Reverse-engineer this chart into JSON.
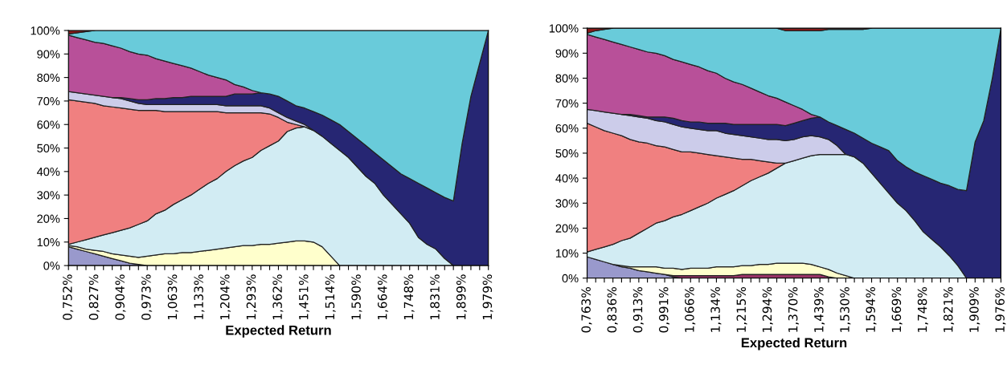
{
  "chart_data": [
    {
      "type": "area",
      "stacked": true,
      "xlabel": "Expected Return",
      "ylim": [
        0,
        100
      ],
      "yticks": [
        {
          "value": 0,
          "label": "0%"
        },
        {
          "value": 10,
          "label": "10%"
        },
        {
          "value": 20,
          "label": "20%"
        },
        {
          "value": 30,
          "label": "30%"
        },
        {
          "value": 40,
          "label": "40%"
        },
        {
          "value": 50,
          "label": "50%"
        },
        {
          "value": 60,
          "label": "60%"
        },
        {
          "value": 70,
          "label": "70%"
        },
        {
          "value": 80,
          "label": "80%"
        },
        {
          "value": 90,
          "label": "90%"
        },
        {
          "value": 100,
          "label": "100%"
        }
      ],
      "categories": [
        "0,752%",
        null,
        null,
        "0,827%",
        null,
        null,
        "0,904%",
        null,
        null,
        "0,973%",
        null,
        null,
        "1,063%",
        null,
        null,
        "1,133%",
        null,
        null,
        "1,204%",
        null,
        null,
        "1,293%",
        null,
        null,
        "1,362%",
        null,
        null,
        "1,451%",
        null,
        null,
        "1,514%",
        null,
        null,
        "1,590%",
        null,
        null,
        "1,664%",
        null,
        null,
        "1,748%",
        null,
        null,
        "1,831%",
        null,
        null,
        "1,899%",
        null,
        null,
        "1,979%"
      ],
      "series": [
        {
          "color": "#9999cc",
          "values": [
            8,
            7,
            6,
            5,
            4,
            3,
            2,
            1,
            0.5,
            0,
            null,
            null,
            null,
            null,
            null,
            null,
            null,
            null,
            null,
            null,
            null,
            null,
            null,
            null,
            null,
            null,
            null,
            null,
            null,
            null,
            null,
            null,
            null,
            null,
            null,
            null,
            null,
            null,
            null,
            null,
            null,
            null,
            null,
            null,
            null,
            null,
            null,
            null,
            null
          ]
        },
        {
          "color": "#ffffcc",
          "values": [
            0.5,
            1,
            1,
            1.5,
            2,
            2,
            2.5,
            3,
            3,
            4,
            4.5,
            5,
            5,
            5.5,
            5.5,
            6,
            6.5,
            7,
            7.5,
            8,
            8.5,
            8.5,
            9,
            9,
            9.5,
            10,
            10.5,
            10.5,
            10,
            8,
            4,
            0,
            null,
            null,
            null,
            null,
            null,
            null,
            null,
            null,
            null,
            null,
            null,
            null,
            null,
            null,
            null,
            null,
            null
          ]
        },
        {
          "color": "#d2ecf3",
          "values": [
            0.5,
            2,
            4,
            5.5,
            7,
            9,
            10.5,
            12,
            14,
            15,
            17.5,
            18.5,
            21,
            22.5,
            24.5,
            26.5,
            28.5,
            30,
            32.5,
            34.5,
            36,
            37.5,
            40,
            42,
            43.5,
            47,
            48,
            48.5,
            47.5,
            47,
            48,
            49,
            46,
            42,
            38,
            35,
            30,
            26,
            22,
            18,
            12,
            9,
            7,
            3,
            0,
            null,
            null,
            null,
            null
          ]
        },
        {
          "color": "#f08080",
          "values": [
            61.5,
            60,
            58.5,
            57,
            55,
            53.5,
            52,
            50.5,
            48.5,
            47,
            44,
            42,
            39.5,
            37.5,
            35.5,
            33,
            30.5,
            28.5,
            25,
            22.5,
            20.5,
            19,
            16,
            13.5,
            10,
            4,
            1.5,
            0,
            null,
            null,
            null,
            null,
            null,
            null,
            null,
            null,
            null,
            null,
            null,
            null,
            null,
            null,
            null,
            null,
            null,
            null,
            null,
            null,
            null
          ]
        },
        {
          "color": "#ccccea",
          "values": [
            3.5,
            3.5,
            3.5,
            3.5,
            4,
            4,
            4,
            3.5,
            3,
            2.5,
            2.5,
            3,
            3,
            3,
            3,
            3,
            3,
            3,
            3,
            3,
            3,
            3,
            3,
            2.5,
            2,
            2,
            1.5,
            1,
            0,
            null,
            null,
            null,
            null,
            null,
            null,
            null,
            null,
            null,
            null,
            null,
            null,
            null,
            null,
            null,
            null,
            null,
            null,
            null,
            null
          ]
        },
        {
          "color": "#262673",
          "values": [
            null,
            null,
            null,
            null,
            null,
            0,
            0.5,
            1,
            1.5,
            2,
            2.5,
            2.5,
            3,
            3,
            3.5,
            3.5,
            3.5,
            3.5,
            4,
            5,
            5,
            5,
            5.5,
            6,
            7,
            7,
            6.5,
            7,
            8,
            9,
            10,
            11,
            11,
            12,
            13,
            13,
            15,
            16,
            17,
            19,
            23,
            24,
            24,
            26,
            27.5,
            52,
            72,
            86,
            100
          ]
        },
        {
          "color": "#b85099",
          "values": [
            24,
            23.5,
            23,
            22.5,
            22.5,
            22,
            21,
            20,
            19.5,
            19,
            17,
            16,
            14.5,
            13.5,
            12,
            10.5,
            9,
            8,
            7,
            4,
            3,
            1.5,
            0,
            null,
            null,
            null,
            null,
            null,
            null,
            null,
            null,
            null,
            null,
            null,
            null,
            null,
            null,
            null,
            null,
            null,
            null,
            null,
            null,
            null,
            null,
            null,
            null,
            null,
            null
          ]
        },
        {
          "color": "#69cbda",
          "values": [
            0.5,
            2,
            3.5,
            5,
            5.5,
            6.5,
            7.5,
            9,
            10,
            10.5,
            12,
            13,
            14,
            15,
            16,
            17.5,
            19,
            20,
            21,
            23,
            24,
            25.5,
            26.5,
            27,
            28,
            30,
            32,
            33,
            34.5,
            36,
            38,
            40,
            43,
            46,
            49,
            52,
            55,
            58,
            61,
            63,
            65,
            67,
            69,
            71,
            72.5,
            48,
            28,
            14,
            0
          ]
        },
        {
          "color": "#8b1a1a",
          "values": [
            1.5,
            1,
            0.5,
            0,
            null,
            null,
            null,
            null,
            null,
            null,
            null,
            null,
            null,
            null,
            null,
            null,
            null,
            null,
            null,
            null,
            null,
            null,
            null,
            null,
            null,
            null,
            null,
            null,
            null,
            null,
            null,
            null,
            null,
            null,
            null,
            null,
            null,
            null,
            null,
            null,
            null,
            null,
            null,
            null,
            null,
            null,
            null,
            null,
            null
          ]
        }
      ]
    },
    {
      "type": "area",
      "stacked": true,
      "xlabel": "Expected Return",
      "ylim": [
        0,
        100
      ],
      "yticks": [
        {
          "value": 0,
          "label": "0%"
        },
        {
          "value": 10,
          "label": "10%"
        },
        {
          "value": 20,
          "label": "20%"
        },
        {
          "value": 30,
          "label": "30%"
        },
        {
          "value": 40,
          "label": "40%"
        },
        {
          "value": 50,
          "label": "50%"
        },
        {
          "value": 60,
          "label": "60%"
        },
        {
          "value": 70,
          "label": "70%"
        },
        {
          "value": 80,
          "label": "80%"
        },
        {
          "value": 90,
          "label": "90%"
        },
        {
          "value": 100,
          "label": "100%"
        }
      ],
      "categories": [
        "0,763%",
        null,
        null,
        "0,836%",
        null,
        null,
        "0,913%",
        null,
        null,
        "0,991%",
        null,
        null,
        "1,066%",
        null,
        null,
        "1,134%",
        null,
        null,
        "1,215%",
        null,
        null,
        "1,294%",
        null,
        null,
        "1,370%",
        null,
        null,
        "1,439%",
        null,
        null,
        "1,530%",
        null,
        null,
        "1,594%",
        null,
        null,
        "1,669%",
        null,
        null,
        "1,748%",
        null,
        null,
        "1,821%",
        null,
        null,
        "1,909%",
        null,
        null,
        "1,976%"
      ],
      "series": [
        {
          "color": "#9999cc",
          "values": [
            8.5,
            7.5,
            6.5,
            5.5,
            4.5,
            4,
            3,
            2.5,
            2,
            1.5,
            0.5,
            0,
            null,
            null,
            null,
            null,
            null,
            null,
            null,
            null,
            null,
            null,
            null,
            null,
            null,
            null,
            null,
            null,
            null,
            null,
            null,
            null,
            null,
            null,
            null,
            null,
            null,
            null,
            null,
            null,
            null,
            null,
            null,
            null,
            null,
            null,
            null,
            null,
            null
          ]
        },
        {
          "color": "#993366",
          "values": [
            null,
            null,
            null,
            null,
            null,
            null,
            null,
            null,
            null,
            0,
            0.5,
            1,
            1,
            1,
            1,
            1,
            1,
            1,
            1.5,
            1.5,
            1.5,
            1.5,
            1.5,
            1.5,
            1.5,
            1.5,
            1.5,
            1.5,
            0.5,
            0,
            null,
            null,
            null,
            null,
            null,
            null,
            null,
            null,
            null,
            null,
            null,
            null,
            null,
            null,
            null,
            null,
            null,
            null,
            null
          ]
        },
        {
          "color": "#ffffcc",
          "values": [
            null,
            null,
            null,
            0,
            0.5,
            0.5,
            1.5,
            2,
            2.5,
            2.5,
            3,
            2.5,
            3,
            3,
            3,
            3.5,
            3.5,
            3.5,
            3.5,
            3.5,
            4,
            4,
            4.5,
            4.5,
            4.5,
            4.5,
            4,
            3,
            3,
            2,
            1,
            0,
            null,
            null,
            null,
            null,
            null,
            null,
            null,
            null,
            null,
            null,
            null,
            null,
            null,
            null,
            null,
            null,
            null
          ]
        },
        {
          "color": "#d2ecf3",
          "values": [
            2,
            4,
            6,
            8,
            10,
            11.5,
            13.5,
            15.5,
            17.5,
            19,
            20.5,
            22,
            23,
            24.5,
            26,
            27.5,
            29,
            30.5,
            32,
            34,
            35,
            36.5,
            38,
            40,
            41,
            42,
            43.5,
            45,
            46,
            47.5,
            48.5,
            48.5,
            46,
            42,
            38,
            34,
            30,
            27,
            23,
            18.5,
            15.5,
            12.5,
            9,
            5,
            0,
            null,
            null,
            null,
            null
          ]
        },
        {
          "color": "#f08080",
          "values": [
            51.5,
            49,
            46.5,
            44.5,
            42,
            39.5,
            36.5,
            34,
            31,
            29.5,
            27,
            25,
            23.5,
            21.5,
            19.5,
            17,
            15,
            13,
            10.5,
            8.5,
            6.5,
            4.5,
            2,
            0,
            null,
            null,
            null,
            null,
            null,
            null,
            null,
            null,
            null,
            null,
            null,
            null,
            null,
            null,
            null,
            null,
            null,
            null,
            null,
            null,
            null,
            null,
            null,
            null,
            null
          ]
        },
        {
          "color": "#ccccea",
          "values": [
            5.5,
            6.5,
            7.5,
            8,
            8.5,
            9.5,
            10,
            10,
            10,
            10,
            10,
            10,
            9.5,
            9.5,
            9.5,
            10,
            9.5,
            9.5,
            9.5,
            9,
            9,
            9,
            9.5,
            9,
            8.5,
            8.5,
            8,
            7,
            6,
            3.5,
            0,
            null,
            null,
            null,
            null,
            null,
            null,
            null,
            null,
            null,
            null,
            null,
            null,
            null,
            null,
            null,
            null,
            null,
            null
          ]
        },
        {
          "color": "#262673",
          "values": [
            null,
            null,
            null,
            null,
            0,
            0.5,
            0.5,
            0.5,
            1.5,
            2,
            2.5,
            2.5,
            2.5,
            3,
            3,
            3,
            4,
            4,
            4.5,
            5,
            5.5,
            6,
            6,
            6,
            6.5,
            6.5,
            7,
            8,
            7,
            8,
            10,
            9.5,
            10,
            12,
            14.5,
            17,
            17,
            17.5,
            19.5,
            22.5,
            24,
            25.5,
            28,
            30.5,
            35,
            54.5,
            63,
            80,
            100
          ]
        },
        {
          "color": "#b85099",
          "values": [
            30,
            29.5,
            29,
            28.5,
            28,
            27,
            26.5,
            26,
            25.5,
            24.5,
            23.5,
            23.5,
            23,
            22,
            21,
            20,
            18,
            17,
            16,
            14.5,
            13,
            11.5,
            10.5,
            9.5,
            7,
            4.5,
            1.5,
            0,
            null,
            null,
            null,
            null,
            null,
            null,
            null,
            null,
            null,
            null,
            null,
            null,
            null,
            null,
            null,
            null,
            null,
            null,
            null,
            null,
            null
          ]
        },
        {
          "color": "#69cbda",
          "values": [
            0.5,
            2.5,
            4,
            5.5,
            6.5,
            7.5,
            8.5,
            9.5,
            10,
            11,
            12.5,
            13.5,
            14.5,
            15.5,
            17,
            18,
            20,
            21.5,
            22.5,
            24,
            25.5,
            27,
            28,
            28.5,
            30,
            31.5,
            33.5,
            34.5,
            37,
            38.5,
            40,
            41.5,
            43.5,
            46,
            47.5,
            49,
            53,
            55.5,
            57.5,
            59,
            60.5,
            62,
            63,
            64.5,
            65,
            45.5,
            37,
            20,
            0
          ]
        },
        {
          "color": "#8b1a1a",
          "values": [
            2,
            1,
            0.5,
            0,
            null,
            null,
            null,
            null,
            null,
            null,
            null,
            null,
            null,
            null,
            null,
            null,
            null,
            null,
            null,
            null,
            null,
            null,
            0,
            1,
            1,
            1,
            1,
            1,
            0.5,
            0.5,
            0.5,
            0.5,
            0.5,
            0,
            null,
            null,
            null,
            null,
            null,
            null,
            null,
            null,
            null,
            null,
            null,
            null,
            null,
            null,
            null
          ]
        }
      ]
    }
  ]
}
